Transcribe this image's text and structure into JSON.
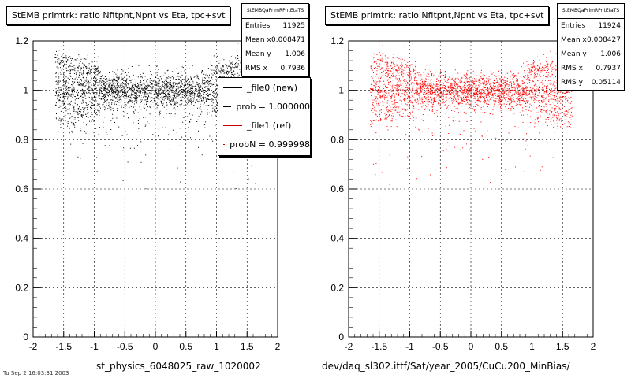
{
  "left_panel": {
    "title": "StEMB primtrk: ratio Nfitpnt,Npnt vs Eta, tpc+svt",
    "stats": {
      "name": "StEMBQaPrimRPntEtaTS",
      "rows": [
        {
          "label": "Entries",
          "value": "11925"
        },
        {
          "label": "Mean x",
          "value": "0.008471"
        },
        {
          "label": "Mean y",
          "value": "1.006"
        },
        {
          "label": "RMS x",
          "value": "0.7936"
        }
      ]
    },
    "legend": [
      {
        "label": "_file0 (new)",
        "color": "#000000"
      },
      {
        "label": "prob = 1.000000",
        "color": "#000000"
      },
      {
        "label": "_file1 (ref)",
        "color": "#cc0000"
      },
      {
        "label": "probN = 0.999998",
        "color": "#cc0000"
      }
    ],
    "xtitle": "st_physics_6048025_raw_1020002",
    "footer": "Tu Sep 2 16:03:31 2003"
  },
  "right_panel": {
    "title": "StEMB primtrk: ratio Nfitpnt,Npnt vs Eta, tpc+svt",
    "stats": {
      "name": "StEMBQaPrimRPntEtaTS",
      "rows": [
        {
          "label": "Entries",
          "value": "11924"
        },
        {
          "label": "Mean x",
          "value": "0.008427"
        },
        {
          "label": "Mean y",
          "value": "1.006"
        },
        {
          "label": "RMS x",
          "value": "0.7937"
        },
        {
          "label": "RMS y",
          "value": "0.05114"
        }
      ]
    },
    "xtitle": "dev/daq_sl302.ittf/Sat/year_2005/CuCu200_MinBias/"
  },
  "chart_data": [
    {
      "type": "scatter",
      "title": "StEMB primtrk: ratio Nfitpnt,Npnt vs Eta, tpc+svt",
      "xlabel": "st_physics_6048025_raw_1020002",
      "ylabel": "",
      "xlim": [
        -2,
        2
      ],
      "ylim": [
        0,
        1.2
      ],
      "xticks": [
        "-2",
        "-1.5",
        "-1",
        "-0.5",
        "0",
        "0.5",
        "1",
        "1.5",
        "2"
      ],
      "yticks": [
        "0",
        "0.2",
        "0.4",
        "0.6",
        "0.8",
        "1",
        "1.2"
      ],
      "grid": true,
      "marker_color": "#000000",
      "series": [
        {
          "name": "_file0 (new)",
          "entries": 11925,
          "mean_x": 0.008471,
          "mean_y": 1.006,
          "rms_x": 0.7936
        }
      ]
    },
    {
      "type": "scatter",
      "title": "StEMB primtrk: ratio Nfitpnt,Npnt vs Eta, tpc+svt",
      "xlabel": "dev/daq_sl302.ittf/Sat/year_2005/CuCu200_MinBias/",
      "ylabel": "",
      "xlim": [
        -2,
        2
      ],
      "ylim": [
        0,
        1.2
      ],
      "xticks": [
        "-2",
        "-1.5",
        "-1",
        "-0.5",
        "0",
        "0.5",
        "1",
        "1.5",
        "2"
      ],
      "yticks": [
        "0",
        "0.2",
        "0.4",
        "0.6",
        "0.8",
        "1",
        "1.2"
      ],
      "grid": true,
      "marker_color": "#ff0000",
      "series": [
        {
          "name": "_file1 (ref)",
          "entries": 11924,
          "mean_x": 0.008427,
          "mean_y": 1.006,
          "rms_x": 0.7937,
          "rms_y": 0.05114
        }
      ]
    }
  ]
}
